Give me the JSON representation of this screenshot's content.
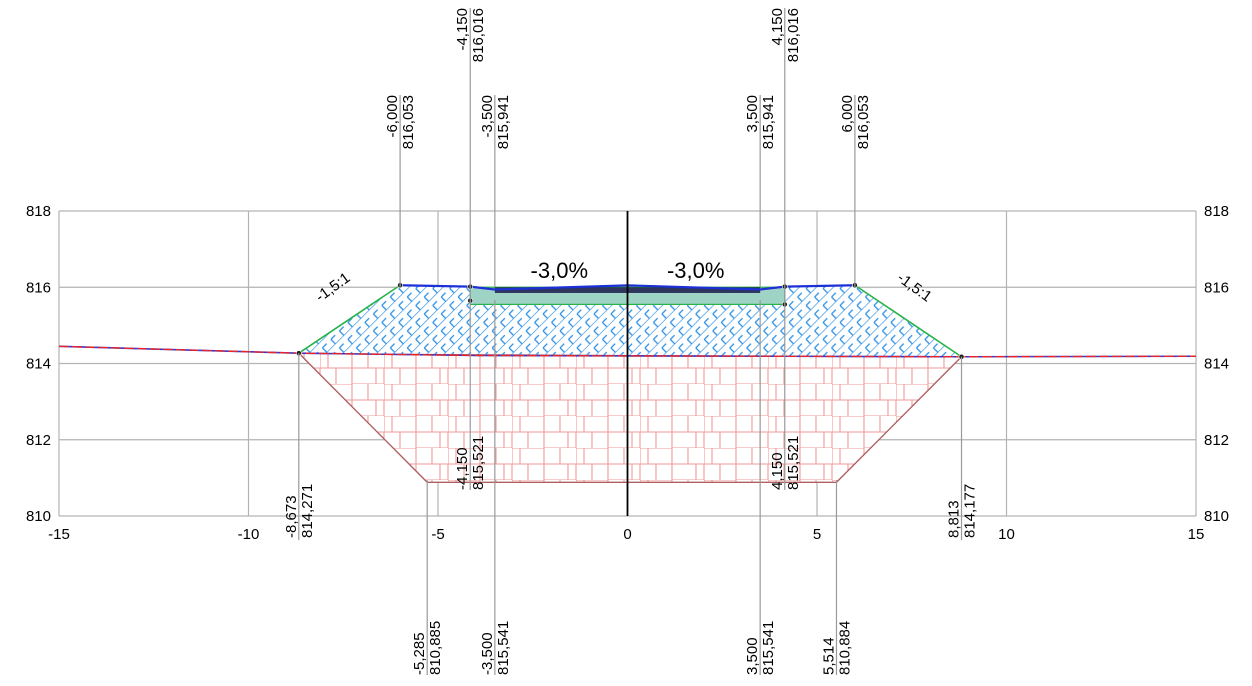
{
  "chart_data": {
    "type": "cross-section",
    "xlim": [
      -15,
      15
    ],
    "ylim": [
      810,
      818
    ],
    "x_ticks": [
      "-15",
      "-10",
      "-5",
      "0",
      "5",
      "10",
      "15"
    ],
    "y_ticks": [
      "810",
      "812",
      "814",
      "816",
      "818"
    ],
    "grid": true,
    "colors": {
      "grid": "#b3b3b3",
      "ground_line": "#e8262a",
      "ground_line_secondary": "#2b37d8",
      "embankment_hatch": "#2b8fe6",
      "subgrade_hatch": "#f09a9a",
      "subgrade_outline": "#b06060",
      "slope_line": "#27b34a",
      "pavement": "#1d2fd6",
      "axis": "#000000"
    },
    "crossfall_labels": [
      {
        "id": "left",
        "x": -1.8,
        "y": 816.45,
        "text": "-3,0%"
      },
      {
        "id": "right",
        "x": 1.8,
        "y": 816.45,
        "text": "-3,0%"
      }
    ],
    "slope_labels": [
      {
        "id": "left",
        "x": -7.7,
        "y": 815.9,
        "angle": -36,
        "text": "-1,5:1"
      },
      {
        "id": "right",
        "x": 7.5,
        "y": 815.9,
        "angle": 36,
        "text": "-1,5:1"
      }
    ],
    "annotations": [
      {
        "id": "top-l-415",
        "x": -4.15,
        "offset": "-4,150",
        "elev": "816,016",
        "pos": "top-high"
      },
      {
        "id": "top-r-415",
        "x": 4.15,
        "offset": "4,150",
        "elev": "816,016",
        "pos": "top-high"
      },
      {
        "id": "top-l-600",
        "x": -6.0,
        "offset": "-6,000",
        "elev": "816,053",
        "pos": "top-low"
      },
      {
        "id": "top-l-350",
        "x": -3.5,
        "offset": "-3,500",
        "elev": "815,941",
        "pos": "top-low"
      },
      {
        "id": "top-r-350",
        "x": 3.5,
        "offset": "3,500",
        "elev": "815,941",
        "pos": "top-low"
      },
      {
        "id": "top-r-600",
        "x": 6.0,
        "offset": "6,000",
        "elev": "816,053",
        "pos": "top-low"
      },
      {
        "id": "mid-l-8673",
        "x": -8.673,
        "offset": "-8,673",
        "elev": "814,271",
        "pos": "mid-low"
      },
      {
        "id": "mid-l-415",
        "x": -4.15,
        "offset": "-4,150",
        "elev": "815,521",
        "pos": "mid-high"
      },
      {
        "id": "mid-r-415",
        "x": 4.15,
        "offset": "4,150",
        "elev": "815,521",
        "pos": "mid-high"
      },
      {
        "id": "mid-r-8813",
        "x": 8.813,
        "offset": "8,813",
        "elev": "814,177",
        "pos": "mid-low"
      },
      {
        "id": "bot-l-5285",
        "x": -5.285,
        "offset": "-5,285",
        "elev": "810,885",
        "pos": "bottom"
      },
      {
        "id": "bot-l-350",
        "x": -3.5,
        "offset": "-3,500",
        "elev": "815,541",
        "pos": "bottom"
      },
      {
        "id": "bot-r-350",
        "x": 3.5,
        "offset": "3,500",
        "elev": "815,541",
        "pos": "bottom"
      },
      {
        "id": "bot-r-5514",
        "x": 5.514,
        "offset": "5,514",
        "elev": "810,884",
        "pos": "bottom"
      }
    ],
    "ground_line": [
      [
        -15,
        814.45
      ],
      [
        -8.673,
        814.271
      ],
      [
        -4.0,
        814.21
      ],
      [
        4.0,
        814.19
      ],
      [
        8.813,
        814.177
      ],
      [
        15,
        814.19
      ]
    ],
    "embankment_outline": [
      [
        -8.673,
        814.271
      ],
      [
        -6.0,
        816.053
      ],
      [
        -4.15,
        816.016
      ],
      [
        -4.15,
        815.65
      ],
      [
        4.15,
        815.65
      ],
      [
        4.15,
        816.016
      ],
      [
        6.0,
        816.053
      ],
      [
        8.813,
        814.177
      ]
    ],
    "subgrade_polygon": [
      [
        -8.673,
        814.271
      ],
      [
        8.813,
        814.177
      ],
      [
        5.514,
        810.884
      ],
      [
        -5.285,
        810.885
      ]
    ],
    "pavement_top": [
      [
        -6.0,
        816.053
      ],
      [
        -4.15,
        816.016
      ],
      [
        -3.5,
        815.941
      ],
      [
        0,
        816.05
      ],
      [
        3.5,
        815.941
      ],
      [
        4.15,
        816.016
      ],
      [
        6.0,
        816.053
      ]
    ]
  }
}
